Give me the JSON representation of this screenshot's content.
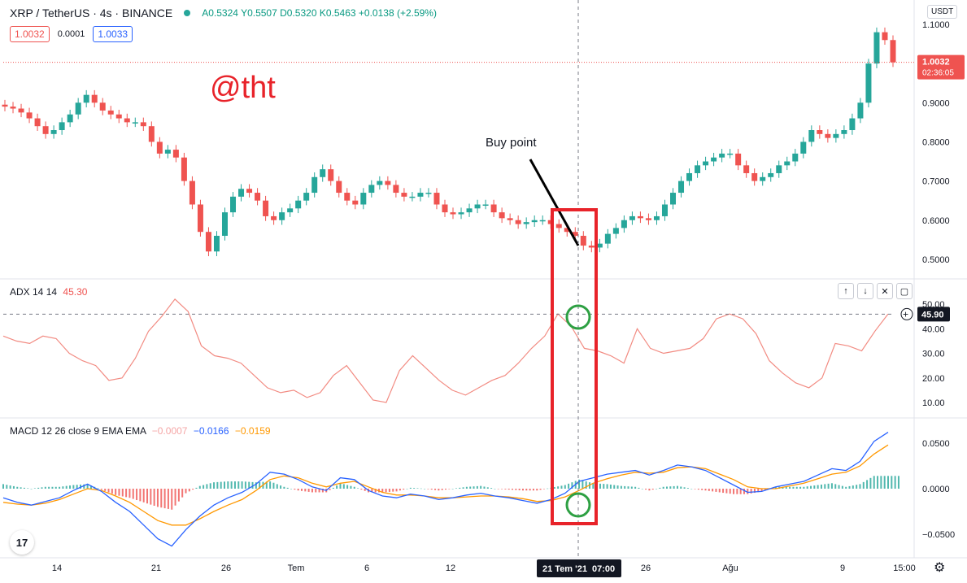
{
  "header": {
    "symbol": "XRP / TetherUS · 4s · BINANCE",
    "open": "A0.5324",
    "high": "Y0.5507",
    "low": "D0.5320",
    "close": "K0.5463",
    "change": "+0.0138 (+2.59%)",
    "sell_price": "1.0032",
    "spread": "0.0001",
    "buy_price": "1.0033",
    "currency": "USDT"
  },
  "watermark": "@tht",
  "annotation": "Buy point",
  "last_price": {
    "value": "1.0032",
    "countdown": "02:36:05"
  },
  "crosshair": {
    "date_label": "21 Tem '21",
    "time_label": "07:00",
    "adx_value": "45.90"
  },
  "colors": {
    "up": "#26a69a",
    "down": "#ef5350",
    "adx": "#f28b82",
    "macd": "#2962ff",
    "signal": "#ff9800",
    "highlight": "#e8232a",
    "circle": "#2ea043"
  },
  "icons": [
    "up-arrow-icon",
    "down-arrow-icon",
    "close-icon",
    "maximize-icon",
    "crosshair-plus-icon",
    "gear-icon",
    "tradingview-logo-icon"
  ],
  "chart_data": [
    {
      "type": "candlestick",
      "title": "XRP / TetherUS · 4s · BINANCE",
      "ylim": [
        0.46,
        1.13
      ],
      "yticks": [
        "1.1000",
        "0.9000",
        "0.8000",
        "0.7000",
        "0.6000",
        "0.5000"
      ],
      "xticks": [
        "14",
        "21",
        "26",
        "Tem",
        "6",
        "12",
        "26",
        "Ağu",
        "9",
        "15:00"
      ],
      "close_series": [
        0.89,
        0.885,
        0.875,
        0.86,
        0.84,
        0.82,
        0.83,
        0.85,
        0.87,
        0.9,
        0.92,
        0.9,
        0.88,
        0.87,
        0.86,
        0.85,
        0.85,
        0.84,
        0.8,
        0.77,
        0.78,
        0.76,
        0.7,
        0.64,
        0.57,
        0.52,
        0.56,
        0.62,
        0.66,
        0.68,
        0.67,
        0.65,
        0.61,
        0.6,
        0.62,
        0.63,
        0.65,
        0.67,
        0.71,
        0.73,
        0.7,
        0.67,
        0.65,
        0.64,
        0.67,
        0.69,
        0.7,
        0.69,
        0.67,
        0.66,
        0.66,
        0.67,
        0.67,
        0.64,
        0.62,
        0.615,
        0.62,
        0.63,
        0.64,
        0.64,
        0.62,
        0.605,
        0.6,
        0.59,
        0.595,
        0.6,
        0.6,
        0.59,
        0.58,
        0.57,
        0.56,
        0.535,
        0.53,
        0.54,
        0.565,
        0.58,
        0.6,
        0.61,
        0.605,
        0.6,
        0.61,
        0.64,
        0.67,
        0.7,
        0.72,
        0.74,
        0.75,
        0.76,
        0.77,
        0.77,
        0.74,
        0.72,
        0.7,
        0.71,
        0.72,
        0.74,
        0.75,
        0.77,
        0.8,
        0.83,
        0.82,
        0.81,
        0.82,
        0.83,
        0.86,
        0.9,
        1.0,
        1.08,
        1.06,
        1.0032
      ],
      "last": "1.0032"
    },
    {
      "type": "line",
      "title": "ADX 14 14",
      "value_label": "45.30",
      "yticks": [
        "50.00",
        "40.00",
        "30.00",
        "20.00",
        "10.00"
      ],
      "ylim": [
        5,
        55
      ],
      "values": [
        37,
        35,
        34,
        37,
        36,
        30,
        27,
        25,
        19,
        20,
        28,
        39,
        45,
        52,
        47,
        33,
        29,
        28,
        26,
        21,
        16,
        14,
        15,
        12,
        14,
        21,
        25,
        18,
        11,
        10,
        23,
        29,
        24,
        19,
        15,
        13,
        16,
        19,
        21,
        26,
        32,
        37,
        46,
        41,
        32,
        31,
        29,
        26,
        40,
        32,
        30,
        31,
        32,
        36,
        44,
        46,
        44,
        38,
        27,
        22,
        18,
        16,
        20,
        34,
        33,
        31,
        39,
        46
      ]
    },
    {
      "type": "line",
      "title": "MACD 12 26 close 9 EMA EMA",
      "hist_label": "−0.0007",
      "macd_label": "−0.0166",
      "signal_label": "−0.0159",
      "yticks": [
        "0.0500",
        "0.0000",
        "−0.0500"
      ],
      "ylim": [
        -0.065,
        0.065
      ],
      "macd": [
        -0.01,
        -0.015,
        -0.018,
        -0.014,
        -0.01,
        -0.002,
        0.005,
        -0.003,
        -0.015,
        -0.025,
        -0.04,
        -0.055,
        -0.063,
        -0.045,
        -0.03,
        -0.018,
        -0.01,
        -0.004,
        0.005,
        0.018,
        0.016,
        0.01,
        0.002,
        -0.002,
        0.012,
        0.01,
        -0.002,
        -0.008,
        -0.01,
        -0.006,
        -0.008,
        -0.012,
        -0.01,
        -0.007,
        -0.005,
        -0.008,
        -0.01,
        -0.013,
        -0.016,
        -0.012,
        -0.005,
        0.008,
        0.012,
        0.016,
        0.018,
        0.02,
        0.015,
        0.02,
        0.026,
        0.024,
        0.02,
        0.012,
        0.004,
        -0.004,
        -0.003,
        0.002,
        0.005,
        0.008,
        0.015,
        0.022,
        0.02,
        0.03,
        0.052,
        0.062
      ],
      "signal": [
        -0.015,
        -0.017,
        -0.018,
        -0.016,
        -0.012,
        -0.006,
        0.0,
        -0.002,
        -0.008,
        -0.015,
        -0.025,
        -0.035,
        -0.04,
        -0.04,
        -0.033,
        -0.025,
        -0.018,
        -0.012,
        -0.002,
        0.01,
        0.014,
        0.012,
        0.006,
        0.002,
        0.006,
        0.008,
        0.002,
        -0.004,
        -0.007,
        -0.007,
        -0.008,
        -0.01,
        -0.01,
        -0.009,
        -0.008,
        -0.008,
        -0.009,
        -0.011,
        -0.014,
        -0.013,
        -0.009,
        -0.002,
        0.006,
        0.011,
        0.015,
        0.018,
        0.017,
        0.018,
        0.023,
        0.024,
        0.022,
        0.016,
        0.01,
        0.002,
        0.0,
        0.0,
        0.003,
        0.006,
        0.011,
        0.016,
        0.018,
        0.025,
        0.038,
        0.048
      ]
    }
  ]
}
